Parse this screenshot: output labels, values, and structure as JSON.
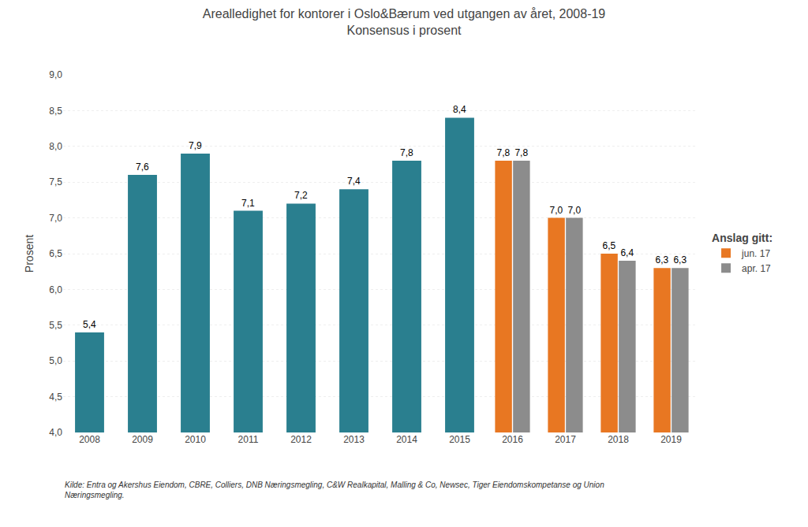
{
  "chart_data": {
    "type": "bar",
    "title": "Arealledighet for kontorer i Oslo&Bærum ved utgangen av året, 2008-19",
    "subtitle": "Konsensus i prosent",
    "y_label": "Prosent",
    "footnote": "Kilde: Entra og Akershus Eiendom, CBRE, Colliers, DNB Næringsmegling, C&W Realkapital, Malling & Co, Newsec, Tiger Eiendomskompetanse og Union\nNæringsmegling.",
    "legend_title": "Anslag gitt:",
    "categories": [
      "2008",
      "2009",
      "2010",
      "2011",
      "2012",
      "2013",
      "2014",
      "2015",
      "2016",
      "2017",
      "2018",
      "2019"
    ],
    "series": [
      {
        "color": "#2a7f8f",
        "values": [
          5.4,
          7.6,
          7.9,
          7.1,
          7.2,
          7.4,
          7.8,
          8.4,
          null,
          null,
          null,
          null
        ],
        "value_labels": [
          "5,4",
          "7,6",
          "7,9",
          "7,1",
          "7,2",
          "7,4",
          "7,8",
          "8,4",
          null,
          null,
          null,
          null
        ]
      },
      {
        "name": "jun. 17",
        "color": "#e87722",
        "values": [
          null,
          null,
          null,
          null,
          null,
          null,
          null,
          null,
          7.8,
          7.0,
          6.5,
          6.3
        ],
        "value_labels": [
          null,
          null,
          null,
          null,
          null,
          null,
          null,
          null,
          "7,8",
          "7,0",
          "6,5",
          "6,3"
        ]
      },
      {
        "name": "apr. 17",
        "color": "#8c8c8c",
        "values": [
          null,
          null,
          null,
          null,
          null,
          null,
          null,
          null,
          7.8,
          7.0,
          6.4,
          6.3
        ],
        "value_labels": [
          null,
          null,
          null,
          null,
          null,
          null,
          null,
          null,
          "7,8",
          "7,0",
          "6,4",
          "6,3"
        ]
      }
    ],
    "ylim": [
      4.0,
      9.0
    ],
    "yticks": [
      {
        "value": 4.0,
        "label": "4,0"
      },
      {
        "value": 4.5,
        "label": "4,5"
      },
      {
        "value": 5.0,
        "label": "5,0"
      },
      {
        "value": 5.5,
        "label": "5,5"
      },
      {
        "value": 6.0,
        "label": "6,0"
      },
      {
        "value": 6.5,
        "label": "6,5"
      },
      {
        "value": 7.0,
        "label": "7,0"
      },
      {
        "value": 7.5,
        "label": "7,5"
      },
      {
        "value": 8.0,
        "label": "8,0"
      },
      {
        "value": 8.5,
        "label": "8,5"
      },
      {
        "value": 9.0,
        "label": "9,0"
      }
    ],
    "grid": true,
    "legend": "right",
    "data_labels": true
  }
}
